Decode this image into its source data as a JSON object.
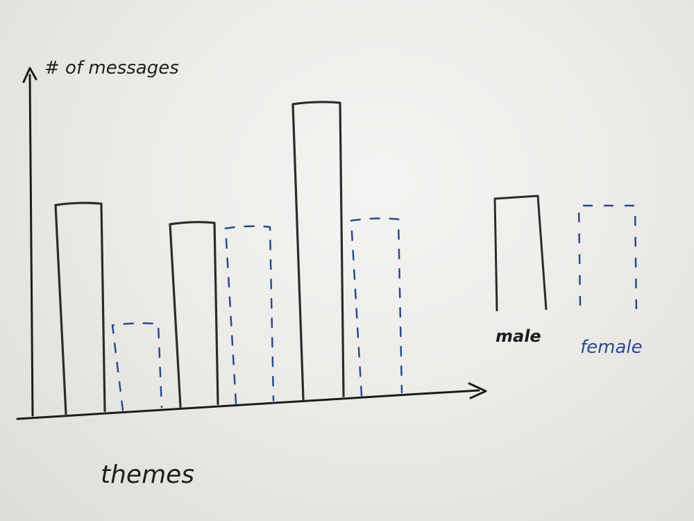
{
  "chart_data": {
    "type": "bar",
    "title": "",
    "xlabel": "themes",
    "ylabel": "# of messages",
    "categories": [
      "",
      "",
      ""
    ],
    "series": [
      {
        "name": "male",
        "values": [
          5.6,
          4.9,
          7.9
        ]
      },
      {
        "name": "female",
        "values": [
          2.3,
          4.7,
          4.7
        ]
      }
    ],
    "ylim": [
      0,
      10
    ],
    "grid": false,
    "legend": "right",
    "colors": {
      "male": "#2b2b2b",
      "female": "#2a4a8c",
      "axis": "#1c1c1c"
    },
    "male_style": "solid",
    "female_style": "dashed"
  },
  "legend": {
    "male_label": "male",
    "female_label": "female"
  },
  "axes": {
    "y_label": "# of messages",
    "x_label": "themes"
  }
}
